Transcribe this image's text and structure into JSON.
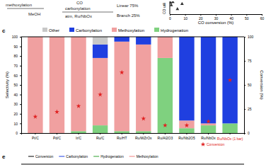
{
  "chart_data": [
    {
      "type": "scatter",
      "x_label": "CO conversion (%)",
      "y_label": "CO utili",
      "x": [
        0.5,
        1,
        2,
        5,
        8
      ],
      "values": [
        90,
        70,
        95,
        40,
        80
      ],
      "color": "#333333",
      "marker": "triangle",
      "xlim": [
        0,
        60
      ],
      "xticks": [
        0,
        10,
        20,
        30,
        40,
        50,
        60
      ],
      "ylim": [
        0,
        100
      ],
      "tick_labels": "x"
    },
    {
      "type": "bar",
      "stacked": true,
      "panel": "c",
      "y_label": "Selectivity (%)",
      "y2_label": "Conversion (%)",
      "categories": [
        "Pt/C",
        "Pd/C",
        "Ir/C",
        "Ru/C",
        "Ru/HT",
        "Ru/WZrOx",
        "Ru/Al2O3",
        "Ru/Nb2O5",
        "Ru/NbOx",
        null
      ],
      "series": [
        {
          "name": "Hydrogenation",
          "color": "#7fd17f",
          "values": [
            0,
            0,
            2,
            8,
            2,
            2,
            78,
            5,
            8,
            10
          ]
        },
        {
          "name": "Methoxylation",
          "color": "#f0a0a0",
          "values": [
            100,
            100,
            98,
            70,
            93,
            90,
            22,
            8,
            2,
            0
          ]
        },
        {
          "name": "Carbonylation",
          "color": "#1f3fe0",
          "values": [
            0,
            0,
            0,
            14,
            5,
            8,
            0,
            87,
            90,
            90
          ]
        },
        {
          "name": "Other",
          "color": "#c8c8c8",
          "values": [
            0,
            0,
            0,
            8,
            0,
            0,
            0,
            0,
            0,
            0
          ]
        },
        {
          "name": "Conversion",
          "type": "scatter",
          "marker": "star",
          "color": "#e02020",
          "axis": "y2",
          "values": [
            17,
            22,
            28,
            40,
            63,
            15,
            8,
            8,
            12,
            55
          ]
        }
      ],
      "annotation": "Ru/NbOx (1 bar)",
      "ylim": [
        0,
        100
      ],
      "yticks": [
        0,
        10,
        20,
        30,
        40,
        50,
        60,
        70,
        80,
        90,
        100
      ],
      "y2lim": [
        0,
        100
      ],
      "y2ticks": [
        0,
        25,
        50,
        75,
        100
      ],
      "legend": "top"
    }
  ],
  "scheme": {
    "texts": [
      "methoxylation",
      "MeOH",
      "CO",
      "carbonylation",
      "atm, Ru/NbOx",
      "Linear 75%",
      "Branch 25%"
    ]
  },
  "panel_e": {
    "label": "e",
    "legend": [
      "Conversion",
      "Carbonylation",
      "Hydrogenation",
      "Methoxylation"
    ]
  }
}
